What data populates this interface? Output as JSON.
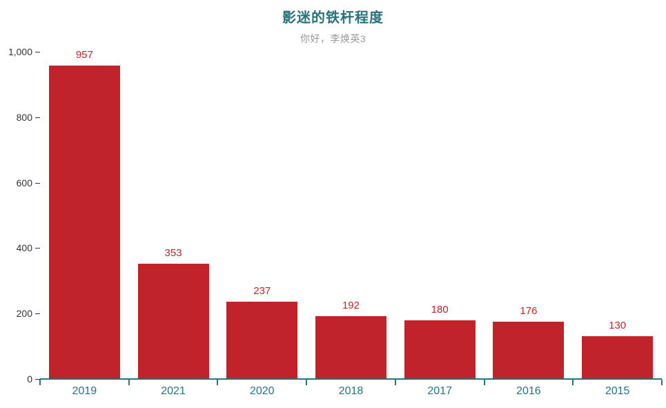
{
  "chart_data": {
    "type": "bar",
    "title": "影迷的铁杆程度",
    "subtitle": "你好，李焕英3",
    "categories": [
      "2019",
      "2021",
      "2020",
      "2018",
      "2017",
      "2016",
      "2015"
    ],
    "values": [
      957,
      353,
      237,
      192,
      180,
      176,
      130
    ],
    "series_name": "影迷的铁杆程度",
    "xlabel": "",
    "ylabel": "",
    "ylim": [
      0,
      1000
    ],
    "y_ticks": [
      {
        "value": 0,
        "label": "0"
      },
      {
        "value": 200,
        "label": "200"
      },
      {
        "value": 400,
        "label": "400"
      },
      {
        "value": 600,
        "label": "600"
      },
      {
        "value": 800,
        "label": "800"
      },
      {
        "value": 1000,
        "label": "1,000"
      }
    ],
    "grid": false,
    "legend_position": "none",
    "value_labels_shown": true,
    "colors": {
      "bar": "#C1232B",
      "value_label": "#C1232B",
      "title": "#27727B",
      "subtitle": "#999999",
      "axis_line": "#27727B",
      "x_tick_label": "#27727B",
      "y_tick_label": "#333333",
      "y_tick_mark": "#333333",
      "background": "#FFFFFF"
    }
  }
}
